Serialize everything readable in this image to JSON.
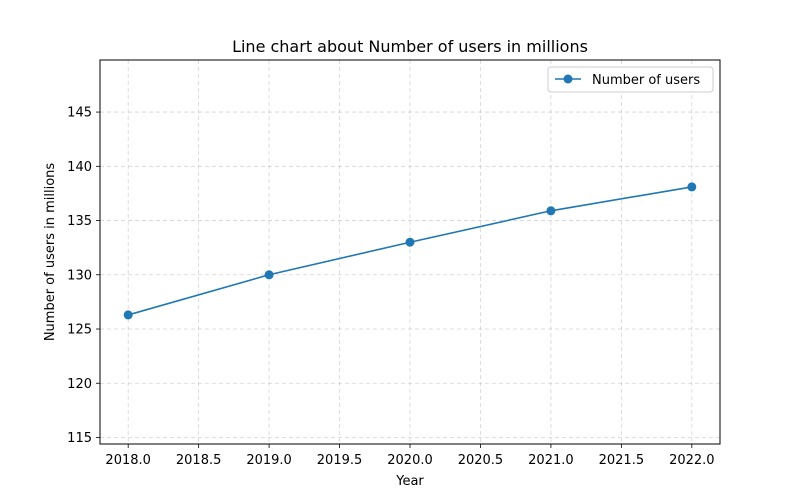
{
  "chart_data": {
    "type": "line",
    "title": "Line chart about Number of users in millions",
    "xlabel": "Year",
    "ylabel": "Number of users in millions",
    "x": [
      2018,
      2019,
      2020,
      2021,
      2022
    ],
    "series": [
      {
        "name": "Number of users",
        "values": [
          126.3,
          130.0,
          133.0,
          135.9,
          138.1
        ],
        "color": "#1f77b4",
        "marker": "circle"
      }
    ],
    "xlim": [
      2017.8,
      2022.2
    ],
    "ylim": [
      114.4,
      149.8
    ],
    "xticks": [
      2018.0,
      2018.5,
      2019.0,
      2019.5,
      2020.0,
      2020.5,
      2021.0,
      2021.5,
      2022.0
    ],
    "xtick_labels": [
      "2018.0",
      "2018.5",
      "2019.0",
      "2019.5",
      "2020.0",
      "2020.5",
      "2021.0",
      "2021.5",
      "2022.0"
    ],
    "yticks": [
      115,
      120,
      125,
      130,
      135,
      140,
      145
    ],
    "ytick_labels": [
      "115",
      "120",
      "125",
      "130",
      "135",
      "140",
      "145"
    ],
    "grid": true,
    "legend_position": "top-right"
  }
}
